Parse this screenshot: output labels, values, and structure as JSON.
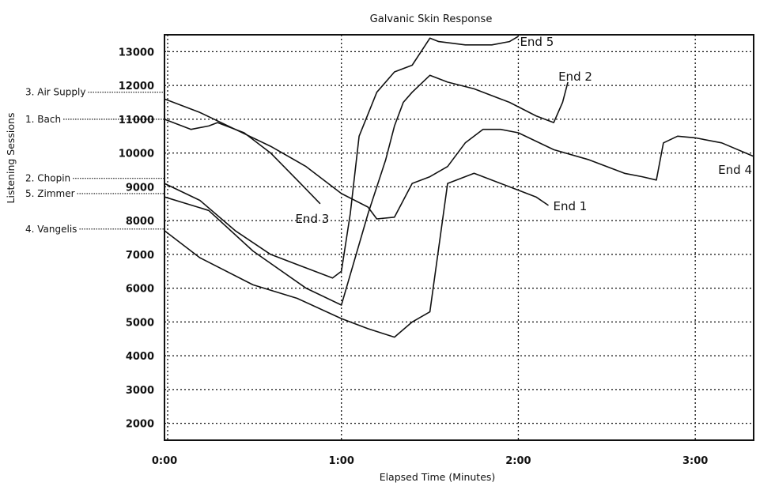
{
  "chart_data": {
    "type": "line",
    "title": "Galvanic Skin Response",
    "xlabel": "Elapsed Time (Minutes)",
    "ylabel": "Listening Sessions",
    "xlim": [
      0,
      3.33
    ],
    "ylim": [
      1500,
      13500
    ],
    "x_ticks": [
      {
        "value": 0,
        "label": "0:00"
      },
      {
        "value": 1,
        "label": "1:00"
      },
      {
        "value": 2,
        "label": "2:00"
      },
      {
        "value": 3,
        "label": "3:00"
      }
    ],
    "y_ticks": [
      2000,
      3000,
      4000,
      5000,
      6000,
      7000,
      8000,
      9000,
      10000,
      11000,
      12000,
      13000
    ],
    "grid": true,
    "session_labels": [
      {
        "label": "3. Air Supply",
        "value": 11800
      },
      {
        "label": "1. Bach",
        "value": 11000
      },
      {
        "label": "2. Chopin",
        "value": 9250
      },
      {
        "label": "5. Zimmer",
        "value": 8800
      },
      {
        "label": "4. Vangelis",
        "value": 7750
      }
    ],
    "series": [
      {
        "end_label": "End 1",
        "x": [
          0,
          0.2,
          0.5,
          0.75,
          1.0,
          1.15,
          1.3,
          1.4,
          1.5,
          1.6,
          1.75,
          1.9,
          2.0,
          2.1,
          2.17
        ],
        "y": [
          7700,
          6900,
          6100,
          5700,
          5100,
          4800,
          4550,
          5000,
          5300,
          9100,
          9400,
          9100,
          8900,
          8700,
          8450
        ]
      },
      {
        "end_label": "End 2",
        "x": [
          0,
          0.25,
          0.5,
          0.8,
          1.0,
          1.15,
          1.25,
          1.3,
          1.35,
          1.4,
          1.5,
          1.6,
          1.75,
          1.95,
          2.1,
          2.2,
          2.25,
          2.28
        ],
        "y": [
          8700,
          8300,
          7100,
          6000,
          5500,
          8200,
          9800,
          10800,
          11500,
          11800,
          12300,
          12100,
          11900,
          11500,
          11100,
          10900,
          11500,
          12100
        ]
      },
      {
        "end_label": "End 3",
        "x": [
          0,
          0.15,
          0.25,
          0.3,
          0.45,
          0.6,
          0.75,
          0.88
        ],
        "y": [
          11000,
          10700,
          10800,
          10900,
          10600,
          10000,
          9200,
          8500
        ]
      },
      {
        "end_label": "End 4",
        "x": [
          0,
          0.2,
          0.4,
          0.6,
          0.8,
          1.0,
          1.15,
          1.2,
          1.3,
          1.4,
          1.5,
          1.6,
          1.7,
          1.8,
          1.9,
          2.0,
          2.2,
          2.4,
          2.6,
          2.7,
          2.78,
          2.82,
          2.9,
          3.0,
          3.15,
          3.33
        ],
        "y": [
          11600,
          11200,
          10700,
          10200,
          9600,
          8800,
          8400,
          8050,
          8100,
          9100,
          9300,
          9600,
          10300,
          10700,
          10700,
          10600,
          10100,
          9800,
          9400,
          9300,
          9200,
          10300,
          10500,
          10450,
          10300,
          9900
        ]
      },
      {
        "end_label": "End 5",
        "x": [
          0,
          0.2,
          0.4,
          0.6,
          0.8,
          0.95,
          1.0,
          1.05,
          1.1,
          1.2,
          1.3,
          1.4,
          1.45,
          1.5,
          1.55,
          1.7,
          1.85,
          1.95,
          2.0
        ],
        "y": [
          9100,
          8600,
          7700,
          7000,
          6600,
          6300,
          6500,
          8200,
          10500,
          11800,
          12400,
          12600,
          13000,
          13400,
          13300,
          13200,
          13200,
          13300,
          13450
        ]
      }
    ]
  }
}
